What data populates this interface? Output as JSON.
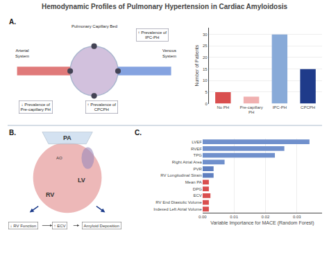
{
  "title": "Hemodynamic Profiles of Pulmonary Hypertension in Cardiac Amyloidosis",
  "chart_data": [
    {
      "type": "diagram",
      "title": "A.",
      "annotations": [
        "Pulmonary Capillary Bed",
        "Arterial\nSystem",
        "Venous\nSystem",
        "↓ Prevalence of\nPre-capillary PH",
        "↑ Prevalence of\nIPC-PH",
        "↑ Prevalence of\nCPCPH"
      ]
    },
    {
      "type": "bar",
      "categories": [
        "No PH",
        "Pre-capillary\nPH",
        "IPC-PH",
        "CPCPH"
      ],
      "values": [
        5,
        3,
        30,
        15
      ],
      "colors": [
        "#d94f4f",
        "#f0b0b0",
        "#88aad8",
        "#1f3b8a"
      ],
      "ylabel": "Number of Patients",
      "ylim": [
        0,
        33
      ],
      "yticks": [
        0,
        5,
        10,
        15,
        20,
        25,
        30
      ],
      "grid": true
    },
    {
      "type": "diagram",
      "title": "B.",
      "annotations": [
        "PA",
        "AO",
        "LV",
        "RV",
        "↓ RV Function",
        "↑ ECV",
        "Amyloid Deposition"
      ]
    },
    {
      "type": "bar",
      "title": "C.",
      "orientation": "horizontal",
      "categories": [
        "LVEF",
        "RVEF",
        "TPG",
        "Right Atrial Area",
        "PVR",
        "RV Longitudinal Strain",
        "Mean PA",
        "DPG",
        "ECV",
        "RV End Diastolic Volume",
        "Indexed Left Atrial Volume"
      ],
      "values": [
        0.034,
        0.026,
        0.023,
        0.007,
        0.0035,
        0.0035,
        0.002,
        0.002,
        0.0025,
        0.002,
        0.002
      ],
      "colors": [
        "#7090cc",
        "#7090cc",
        "#7090cc",
        "#7090cc",
        "#6080c0",
        "#6080c0",
        "#d94f4f",
        "#d94f4f",
        "#d94f4f",
        "#d94f4f",
        "#d94f4f"
      ],
      "xlabel": "Variable Importance for MACE (Random Forest)",
      "xlim": [
        0,
        0.038
      ],
      "xticks": [
        {
          "value": 0,
          "label": "0.00"
        },
        0.01,
        0.02,
        0.03
      ],
      "grid": true
    }
  ]
}
